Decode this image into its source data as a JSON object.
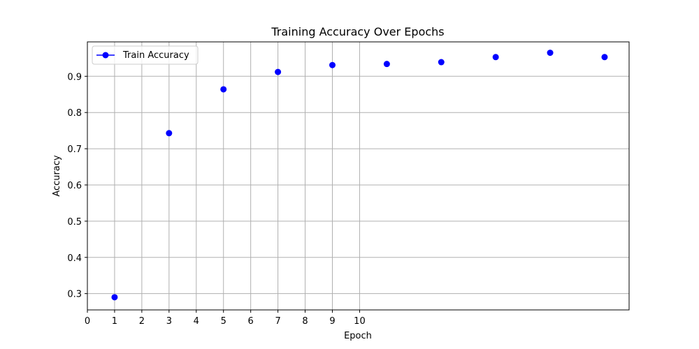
{
  "chart_data": {
    "type": "scatter",
    "title": "Training Accuracy Over Epochs",
    "xlabel": "Epoch",
    "ylabel": "Accuracy",
    "xlim": [
      0,
      19.9
    ],
    "ylim": [
      0.255,
      0.995
    ],
    "x_ticks": [
      0,
      1,
      2,
      3,
      4,
      5,
      6,
      7,
      8,
      9,
      10
    ],
    "y_ticks": [
      0.3,
      0.4,
      0.5,
      0.6,
      0.7,
      0.8,
      0.9
    ],
    "grid": true,
    "legend_position": "top-left",
    "series": [
      {
        "name": "Train Accuracy",
        "color": "#0000ff",
        "marker": "circle",
        "x": [
          1,
          3,
          5,
          7,
          9,
          11,
          13,
          15,
          17,
          19
        ],
        "y": [
          0.29,
          0.743,
          0.864,
          0.912,
          0.931,
          0.934,
          0.939,
          0.953,
          0.965,
          0.953
        ]
      }
    ]
  }
}
